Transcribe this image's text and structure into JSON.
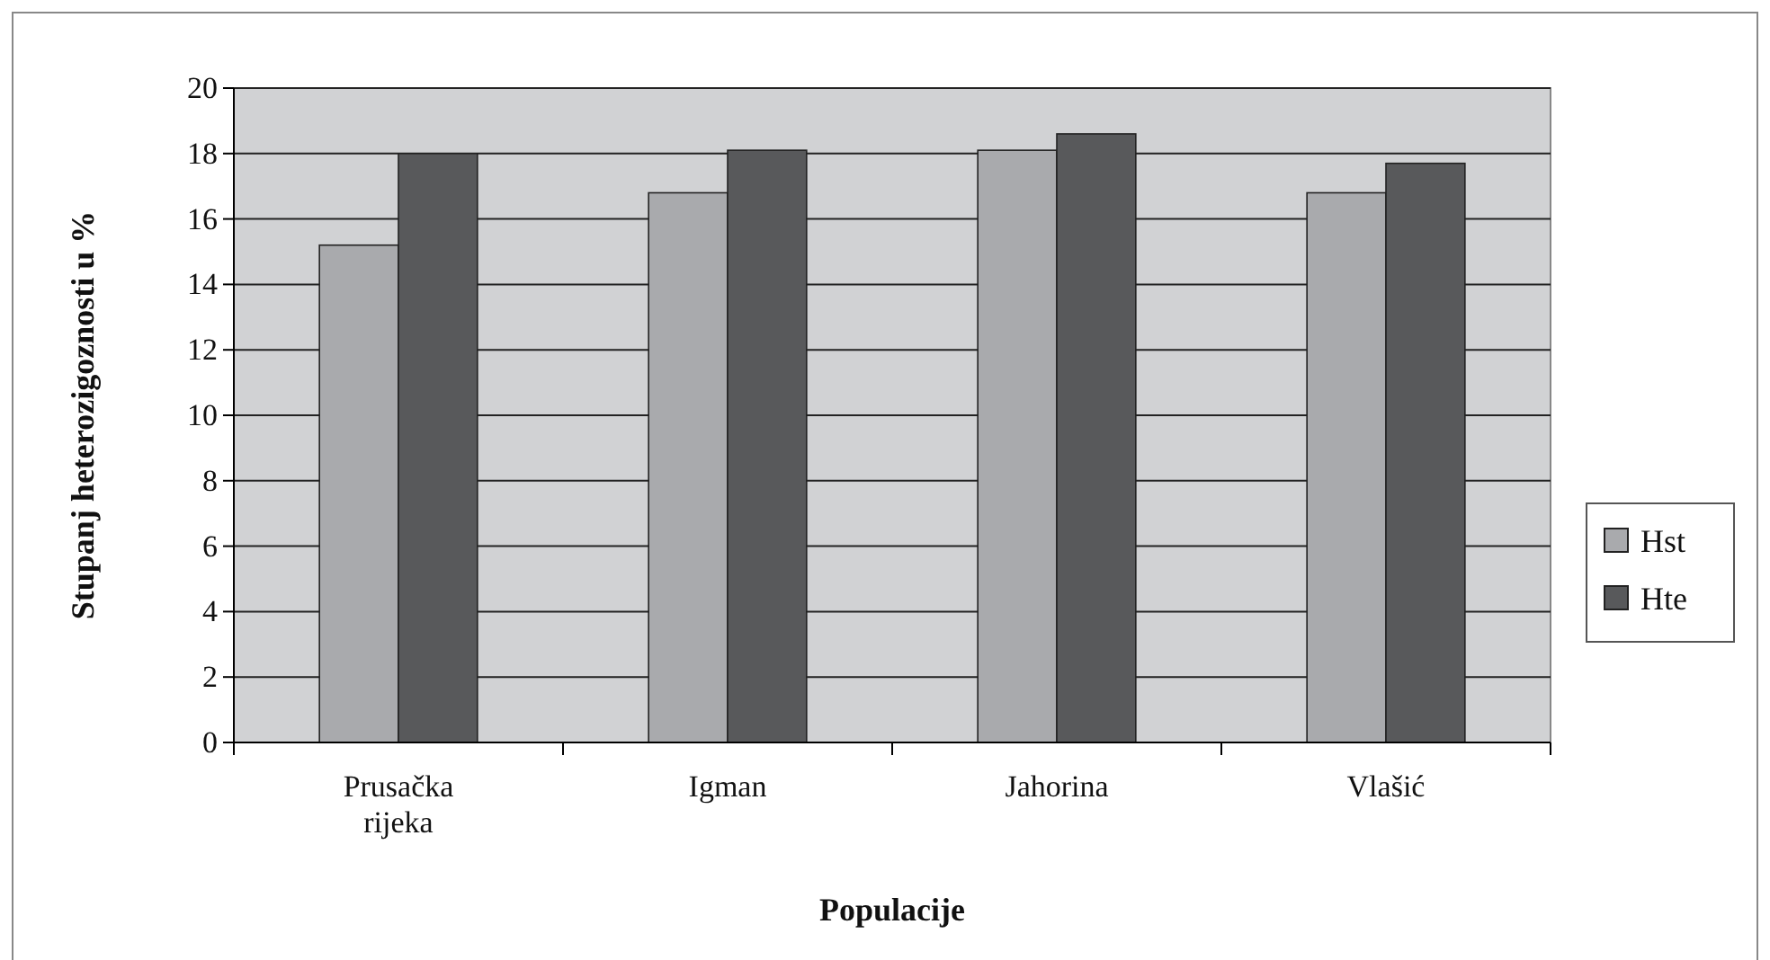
{
  "chart_data": {
    "type": "bar",
    "xlabel": "Populacije",
    "ylabel": "Stupanj heterozigoznosti u %",
    "categories": [
      "Prusačka rijeka",
      "Igman",
      "Jahorina",
      "Vlašić"
    ],
    "series": [
      {
        "name": "Hst",
        "color": "#a9aaad",
        "values": [
          15.2,
          16.8,
          18.1,
          16.8
        ]
      },
      {
        "name": "Hte",
        "color": "#58595b",
        "values": [
          18.0,
          18.1,
          18.6,
          17.7
        ]
      }
    ],
    "ylim": [
      0,
      20
    ],
    "yticks": [
      0,
      2,
      4,
      6,
      8,
      10,
      12,
      14,
      16,
      18,
      20
    ],
    "grid": "y",
    "legend": "right"
  }
}
